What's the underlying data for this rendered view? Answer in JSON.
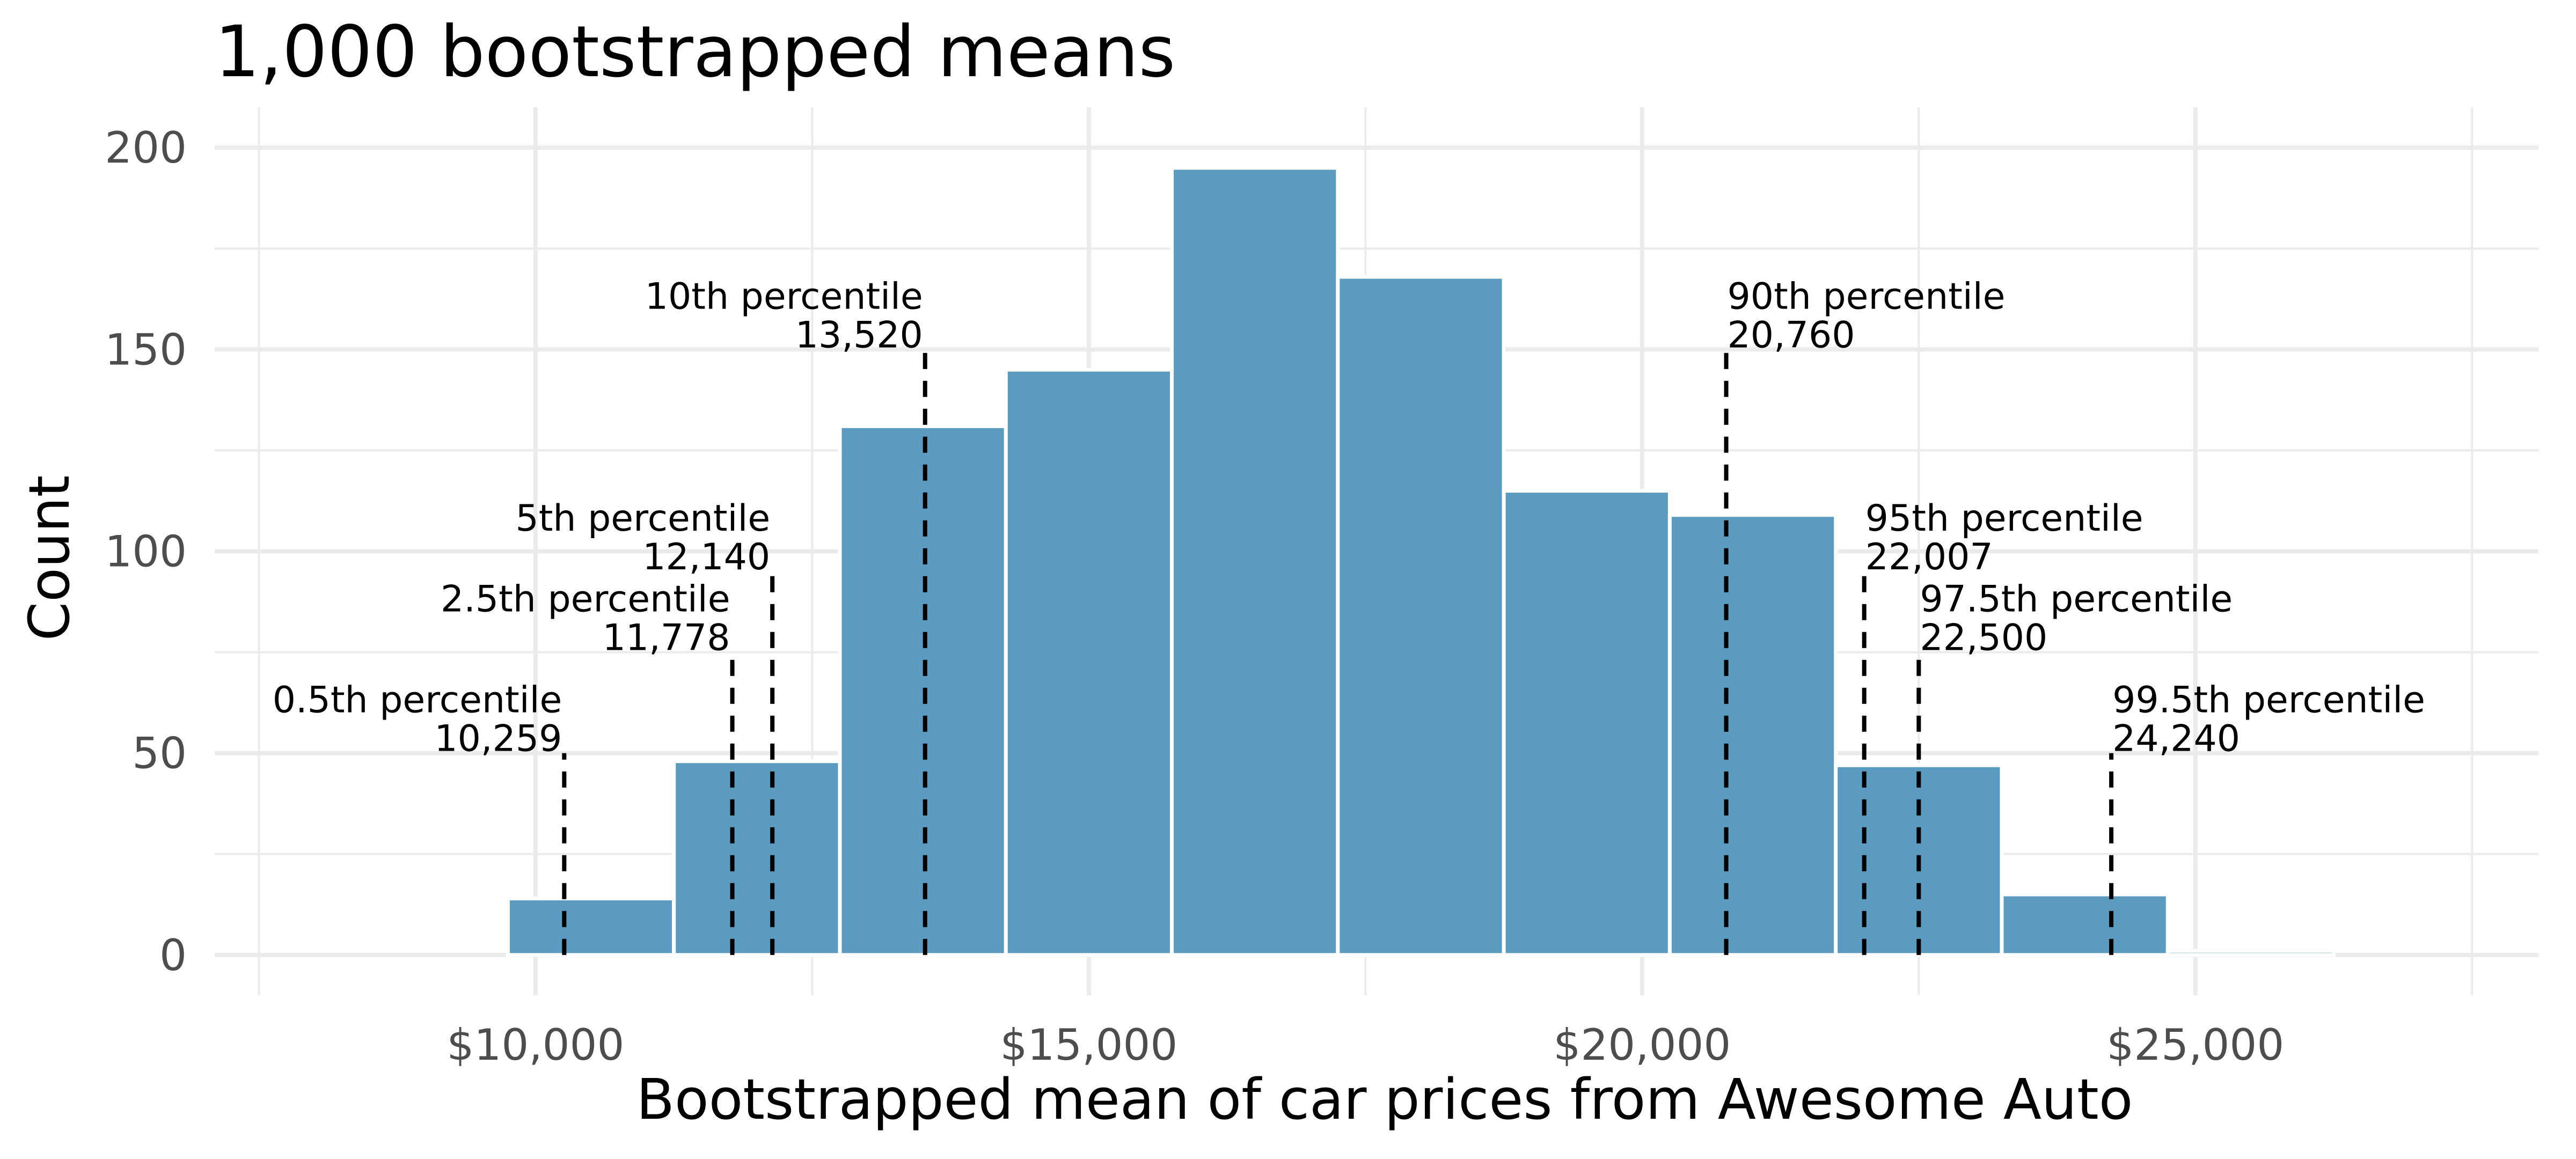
{
  "chart_data": {
    "type": "bar",
    "title": "1,000 bootstrapped means",
    "xlabel": "Bootstrapped mean of car prices from Awesome Auto",
    "ylabel": "Count",
    "bar_color": "#5a9bbf",
    "xlim": [
      7100,
      28100
    ],
    "ylim": [
      -10,
      210
    ],
    "x_ticks": [
      10000,
      15000,
      20000,
      25000
    ],
    "x_tick_labels": [
      "$10,000",
      "$15,000",
      "$20,000",
      "$25,000"
    ],
    "y_ticks": [
      0,
      50,
      100,
      150,
      200
    ],
    "y_tick_labels": [
      "0",
      "50",
      "100",
      "150",
      "200"
    ],
    "bin_width": 1500,
    "bins": [
      {
        "center": 9000,
        "count": 0
      },
      {
        "center": 10500,
        "count": 14
      },
      {
        "center": 12000,
        "count": 48
      },
      {
        "center": 13500,
        "count": 131
      },
      {
        "center": 15000,
        "count": 145
      },
      {
        "center": 16500,
        "count": 195
      },
      {
        "center": 18000,
        "count": 168
      },
      {
        "center": 19500,
        "count": 115
      },
      {
        "center": 21000,
        "count": 109
      },
      {
        "center": 22500,
        "count": 47
      },
      {
        "center": 24000,
        "count": 15
      },
      {
        "center": 25500,
        "count": 1
      }
    ],
    "percentiles": [
      {
        "name": "0.5th percentile",
        "value": 10259,
        "value_label": "10,259",
        "line_top": 50,
        "side": "left"
      },
      {
        "name": "2.5th percentile",
        "value": 11778,
        "value_label": "11,778",
        "line_top": 75,
        "side": "left"
      },
      {
        "name": "5th percentile",
        "value": 12140,
        "value_label": "12,140",
        "line_top": 95,
        "side": "left"
      },
      {
        "name": "10th percentile",
        "value": 13520,
        "value_label": "13,520",
        "line_top": 150,
        "side": "left"
      },
      {
        "name": "90th percentile",
        "value": 20760,
        "value_label": "20,760",
        "line_top": 150,
        "side": "right"
      },
      {
        "name": "95th percentile",
        "value": 22007,
        "value_label": "22,007",
        "line_top": 95,
        "side": "right"
      },
      {
        "name": "97.5th percentile",
        "value": 22500,
        "value_label": "22,500",
        "line_top": 75,
        "side": "right"
      },
      {
        "name": "99.5th percentile",
        "value": 24240,
        "value_label": "24,240",
        "line_top": 50,
        "side": "right"
      }
    ]
  }
}
